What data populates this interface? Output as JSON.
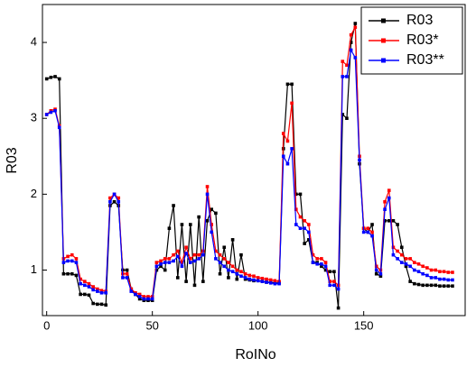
{
  "chart_data": {
    "type": "line",
    "xlabel": "RoINo",
    "ylabel": "R03",
    "x": [
      0,
      2,
      4,
      6,
      8,
      10,
      12,
      14,
      16,
      18,
      20,
      22,
      24,
      26,
      28,
      30,
      32,
      34,
      36,
      38,
      40,
      42,
      44,
      46,
      48,
      50,
      52,
      54,
      56,
      58,
      60,
      62,
      64,
      66,
      68,
      70,
      72,
      74,
      76,
      78,
      80,
      82,
      84,
      86,
      88,
      90,
      92,
      94,
      96,
      98,
      100,
      102,
      104,
      106,
      108,
      110,
      112,
      114,
      116,
      118,
      120,
      122,
      124,
      126,
      128,
      130,
      132,
      134,
      136,
      138,
      140,
      142,
      144,
      146,
      148,
      150,
      152,
      154,
      156,
      158,
      160,
      162,
      164,
      166,
      168,
      170,
      172,
      174,
      176,
      178,
      180,
      182,
      184,
      186,
      188,
      190,
      192
    ],
    "series": [
      {
        "name": "R03",
        "color": "#000000",
        "values": [
          3.52,
          3.54,
          3.55,
          3.52,
          0.95,
          0.95,
          0.95,
          0.93,
          0.68,
          0.68,
          0.67,
          0.56,
          0.55,
          0.55,
          0.54,
          1.85,
          1.9,
          1.85,
          1.0,
          1.0,
          0.75,
          0.68,
          0.62,
          0.6,
          0.6,
          0.6,
          1.0,
          1.05,
          1.0,
          1.55,
          1.85,
          0.9,
          1.6,
          0.85,
          1.6,
          0.8,
          1.7,
          0.85,
          1.65,
          1.8,
          1.75,
          0.95,
          1.3,
          0.9,
          1.4,
          0.88,
          1.2,
          0.88,
          0.87,
          0.86,
          0.86,
          0.85,
          0.84,
          0.84,
          0.83,
          0.83,
          2.6,
          3.45,
          3.45,
          2.0,
          2.0,
          1.35,
          1.4,
          1.1,
          1.1,
          1.05,
          1.0,
          0.98,
          0.98,
          0.5,
          3.05,
          3.0,
          4.0,
          4.25,
          2.4,
          1.55,
          1.5,
          1.6,
          0.95,
          0.92,
          1.65,
          1.65,
          1.65,
          1.6,
          1.3,
          1.05,
          0.85,
          0.82,
          0.81,
          0.8,
          0.8,
          0.8,
          0.8,
          0.79,
          0.79,
          0.79,
          0.79
        ]
      },
      {
        "name": "R03*",
        "color": "#ff0000",
        "values": [
          3.05,
          3.1,
          3.12,
          2.9,
          1.15,
          1.18,
          1.2,
          1.15,
          0.88,
          0.85,
          0.82,
          0.78,
          0.75,
          0.73,
          0.72,
          1.95,
          2.0,
          1.95,
          0.95,
          0.95,
          0.75,
          0.7,
          0.68,
          0.65,
          0.65,
          0.65,
          1.1,
          1.12,
          1.15,
          1.15,
          1.2,
          1.25,
          1.1,
          1.3,
          1.15,
          1.2,
          1.2,
          1.25,
          2.1,
          1.6,
          1.25,
          1.2,
          1.15,
          1.1,
          1.05,
          1.0,
          0.98,
          0.95,
          0.93,
          0.92,
          0.9,
          0.89,
          0.88,
          0.87,
          0.86,
          0.85,
          2.8,
          2.7,
          3.2,
          1.8,
          1.7,
          1.65,
          1.6,
          1.2,
          1.15,
          1.15,
          1.1,
          0.85,
          0.85,
          0.8,
          3.75,
          3.7,
          4.1,
          4.2,
          2.5,
          1.55,
          1.55,
          1.5,
          1.05,
          1.0,
          1.9,
          2.05,
          1.3,
          1.25,
          1.2,
          1.15,
          1.15,
          1.1,
          1.08,
          1.05,
          1.03,
          1.0,
          1.0,
          0.98,
          0.98,
          0.97,
          0.97
        ]
      },
      {
        "name": "R03**",
        "color": "#0000ff",
        "values": [
          3.05,
          3.08,
          3.1,
          2.88,
          1.1,
          1.12,
          1.12,
          1.1,
          0.82,
          0.8,
          0.78,
          0.74,
          0.72,
          0.7,
          0.7,
          1.9,
          2.0,
          1.9,
          0.9,
          0.9,
          0.72,
          0.68,
          0.65,
          0.62,
          0.62,
          0.62,
          1.05,
          1.08,
          1.1,
          1.1,
          1.12,
          1.18,
          1.05,
          1.22,
          1.1,
          1.12,
          1.15,
          1.2,
          2.0,
          1.5,
          1.15,
          1.1,
          1.05,
          1.0,
          0.98,
          0.95,
          0.92,
          0.9,
          0.88,
          0.87,
          0.86,
          0.85,
          0.84,
          0.83,
          0.82,
          0.82,
          2.5,
          2.4,
          2.6,
          1.6,
          1.55,
          1.55,
          1.5,
          1.1,
          1.08,
          1.08,
          1.05,
          0.8,
          0.8,
          0.75,
          3.55,
          3.55,
          3.9,
          3.8,
          2.45,
          1.5,
          1.5,
          1.45,
          1.0,
          0.95,
          1.8,
          1.95,
          1.2,
          1.15,
          1.1,
          1.08,
          1.05,
          1.0,
          0.98,
          0.95,
          0.93,
          0.9,
          0.9,
          0.88,
          0.88,
          0.87,
          0.87
        ]
      }
    ],
    "xlim": [
      -2,
      198
    ],
    "ylim": [
      0.4,
      4.5
    ],
    "xticks": [
      0,
      50,
      100,
      150
    ],
    "yticks": [
      1,
      2,
      3,
      4
    ],
    "legend": "upper right"
  }
}
